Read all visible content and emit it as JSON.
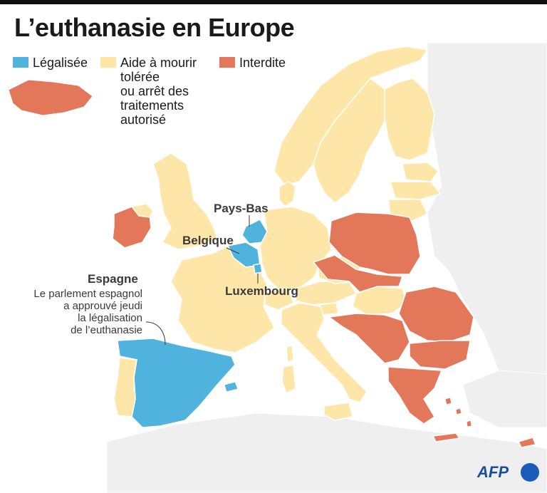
{
  "title": "L’euthanasie en Europe",
  "legend": [
    {
      "label": "Légalisée",
      "color": "#4fb3de"
    },
    {
      "label": "Aide à mourir tolérée ou arrêt des traitements autorisé",
      "lines": [
        "Aide à mourir",
        "tolérée",
        "ou arrêt des",
        "traitements",
        "autorisé"
      ],
      "color": "#fde6a7"
    },
    {
      "label": "Interdite",
      "color": "#e2775a"
    }
  ],
  "colors": {
    "legalised": "#4fb3de",
    "tolerated": "#fde6a7",
    "forbidden": "#e2775a",
    "other": "#efefef",
    "sea": "#ffffff",
    "border": "#ffffff"
  },
  "country_status": {
    "Islande": "forbidden",
    "Irlande": "forbidden",
    "Royaume-Uni": "tolerated",
    "Norvège": "tolerated",
    "Suède": "tolerated",
    "Finlande": "tolerated",
    "Danemark": "tolerated",
    "Pays-Bas": "legalised",
    "Belgique": "legalised",
    "Luxembourg": "legalised",
    "Espagne": "legalised",
    "Portugal": "tolerated",
    "France": "tolerated",
    "Allemagne": "tolerated",
    "Suisse": "tolerated",
    "Autriche": "tolerated",
    "Italie": "tolerated",
    "Tchéquie": "tolerated",
    "Slovénie": "tolerated",
    "Hongrie": "tolerated",
    "Estonie": "tolerated",
    "Lettonie": "tolerated",
    "Lituanie": "tolerated",
    "Pologne": "forbidden",
    "Slovaquie": "forbidden",
    "Roumanie": "forbidden",
    "Bulgarie": "forbidden",
    "Grèce": "forbidden",
    "Croatie": "forbidden",
    "Serbie": "forbidden",
    "Bosnie": "forbidden",
    "Chypre": "forbidden"
  },
  "labels": {
    "pays_bas": "Pays-Bas",
    "belgique": "Belgique",
    "luxembourg": "Luxembourg",
    "espagne": "Espagne"
  },
  "note": "Le parlement espagnol a approuvé jeudi la légalisation de l’euthanasie",
  "note_lines": [
    "Le parlement espagnol",
    "a approuvé jeudi",
    "la légalisation",
    "de l’euthanasie"
  ],
  "logo": "AFP"
}
